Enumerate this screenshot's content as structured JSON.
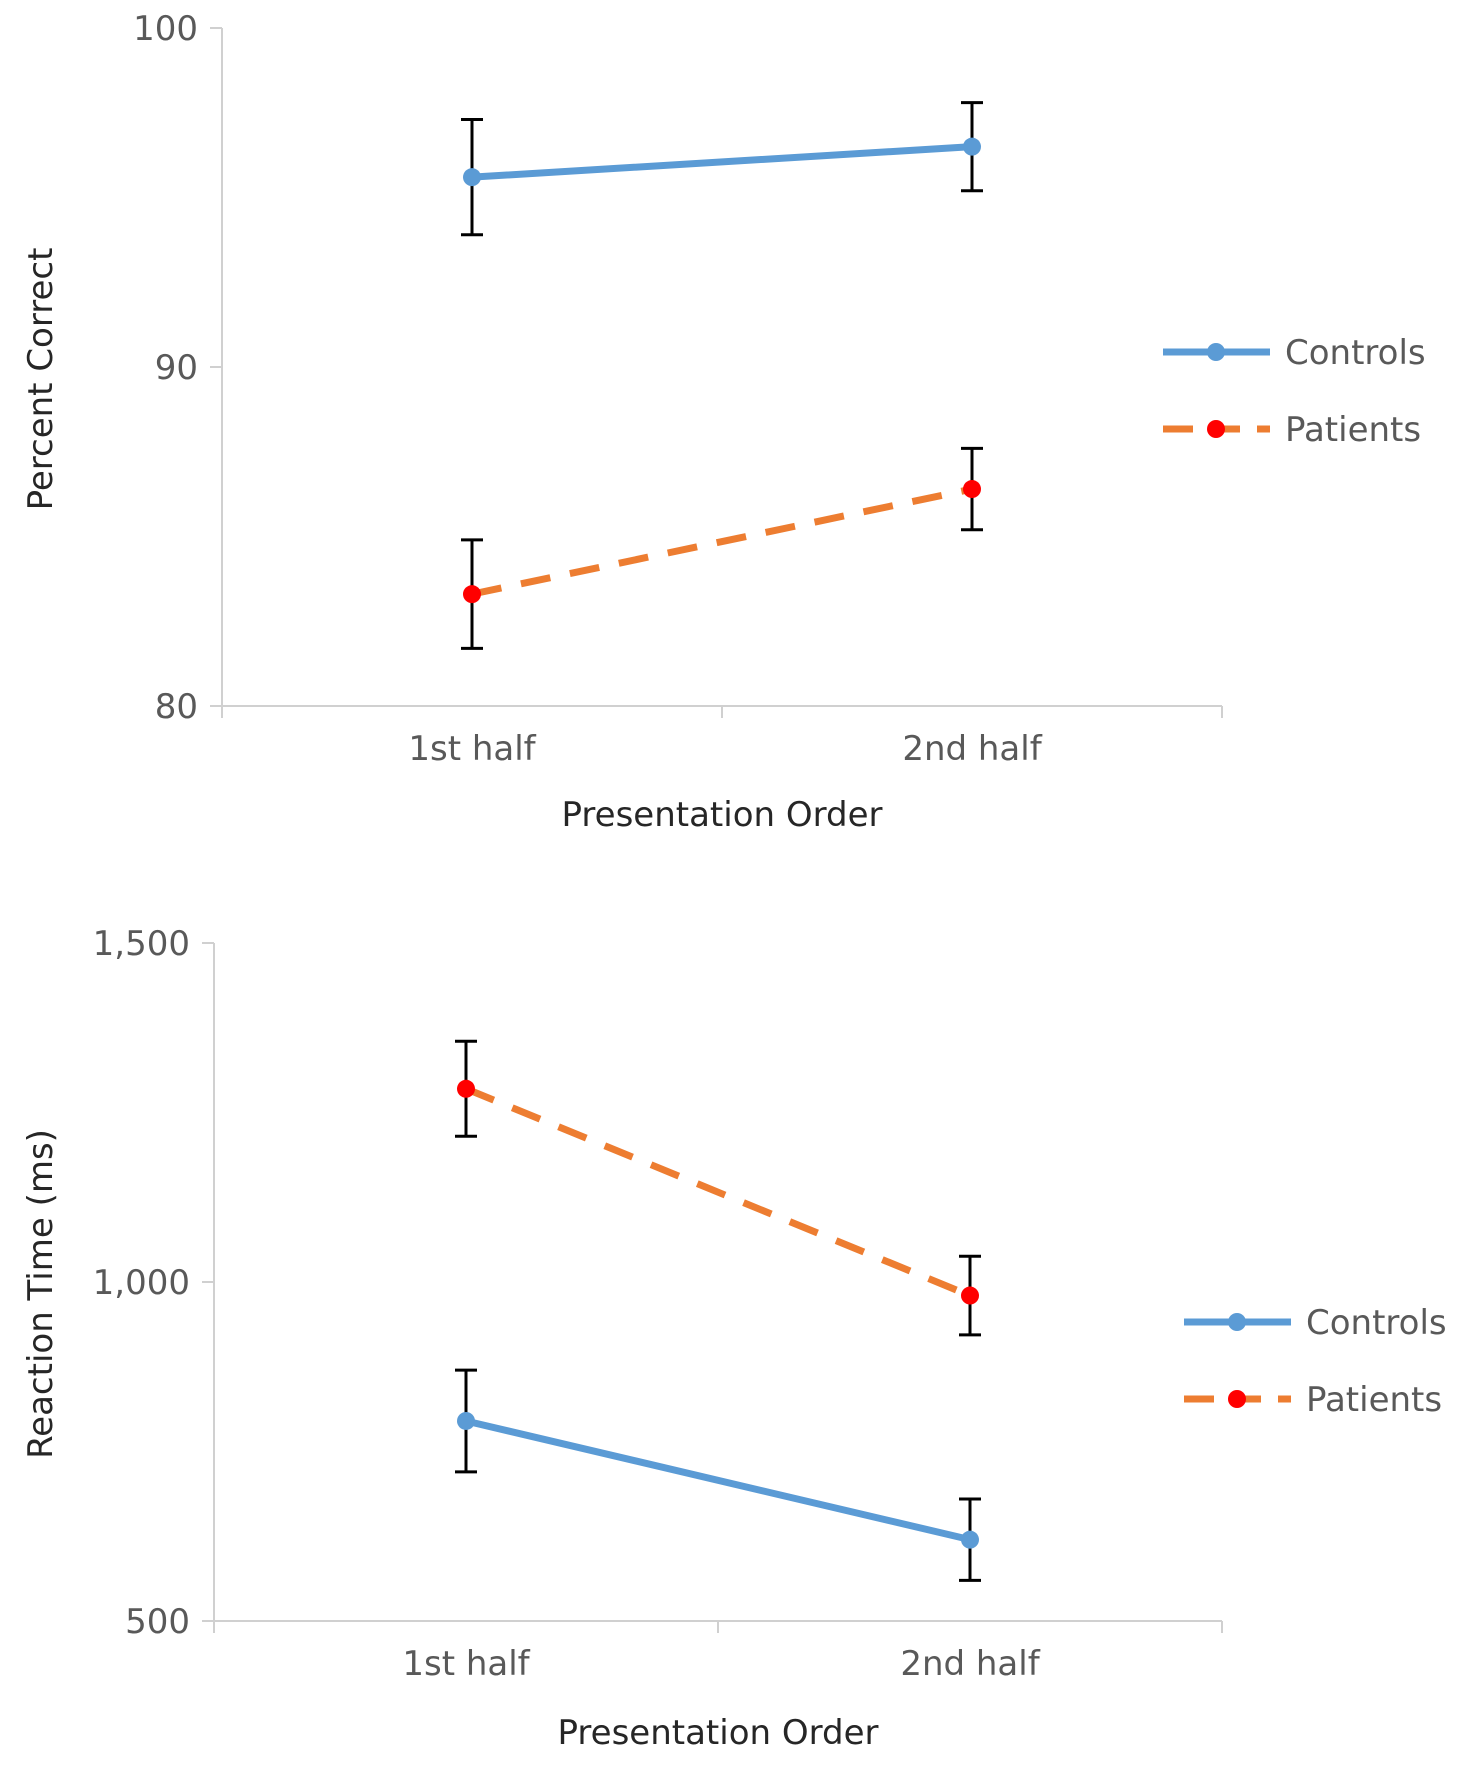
{
  "colors": {
    "controls_line": "#5b9bd5",
    "controls_marker": "#5b9bd5",
    "patients_line": "#ed7d31",
    "patients_marker": "#ff0000",
    "error_bar": "#000000"
  },
  "chart_data": [
    {
      "type": "line",
      "categories": [
        "1st half",
        "2nd half"
      ],
      "xlabel": "Presentation Order",
      "ylabel": "Percent Correct",
      "ylim": [
        80,
        100
      ],
      "yticks": [
        {
          "value": 80,
          "label": "80"
        },
        {
          "value": 90,
          "label": "90"
        },
        {
          "value": 100,
          "label": "100"
        }
      ],
      "series": [
        {
          "key": "controls",
          "name": "Controls",
          "style": "solid",
          "values": [
            95.6,
            96.5
          ],
          "errors": [
            1.7,
            1.3
          ]
        },
        {
          "key": "patients",
          "name": "Patients",
          "style": "dashed",
          "values": [
            83.3,
            86.4
          ],
          "errors": [
            1.6,
            1.2
          ]
        }
      ],
      "legend_position": "right"
    },
    {
      "type": "line",
      "categories": [
        "1st half",
        "2nd half"
      ],
      "xlabel": "Presentation Order",
      "ylabel": "Reaction Time (ms)",
      "ylim": [
        500,
        1500
      ],
      "yticks": [
        {
          "value": 500,
          "label": "500"
        },
        {
          "value": 1000,
          "label": "1,000"
        },
        {
          "value": 1500,
          "label": "1,500"
        }
      ],
      "series": [
        {
          "key": "controls",
          "name": "Controls",
          "style": "solid",
          "values": [
            795,
            620
          ],
          "errors": [
            75,
            60
          ]
        },
        {
          "key": "patients",
          "name": "Patients",
          "style": "dashed",
          "values": [
            1285,
            980
          ],
          "errors": [
            70,
            58
          ]
        }
      ],
      "legend_position": "right"
    }
  ]
}
